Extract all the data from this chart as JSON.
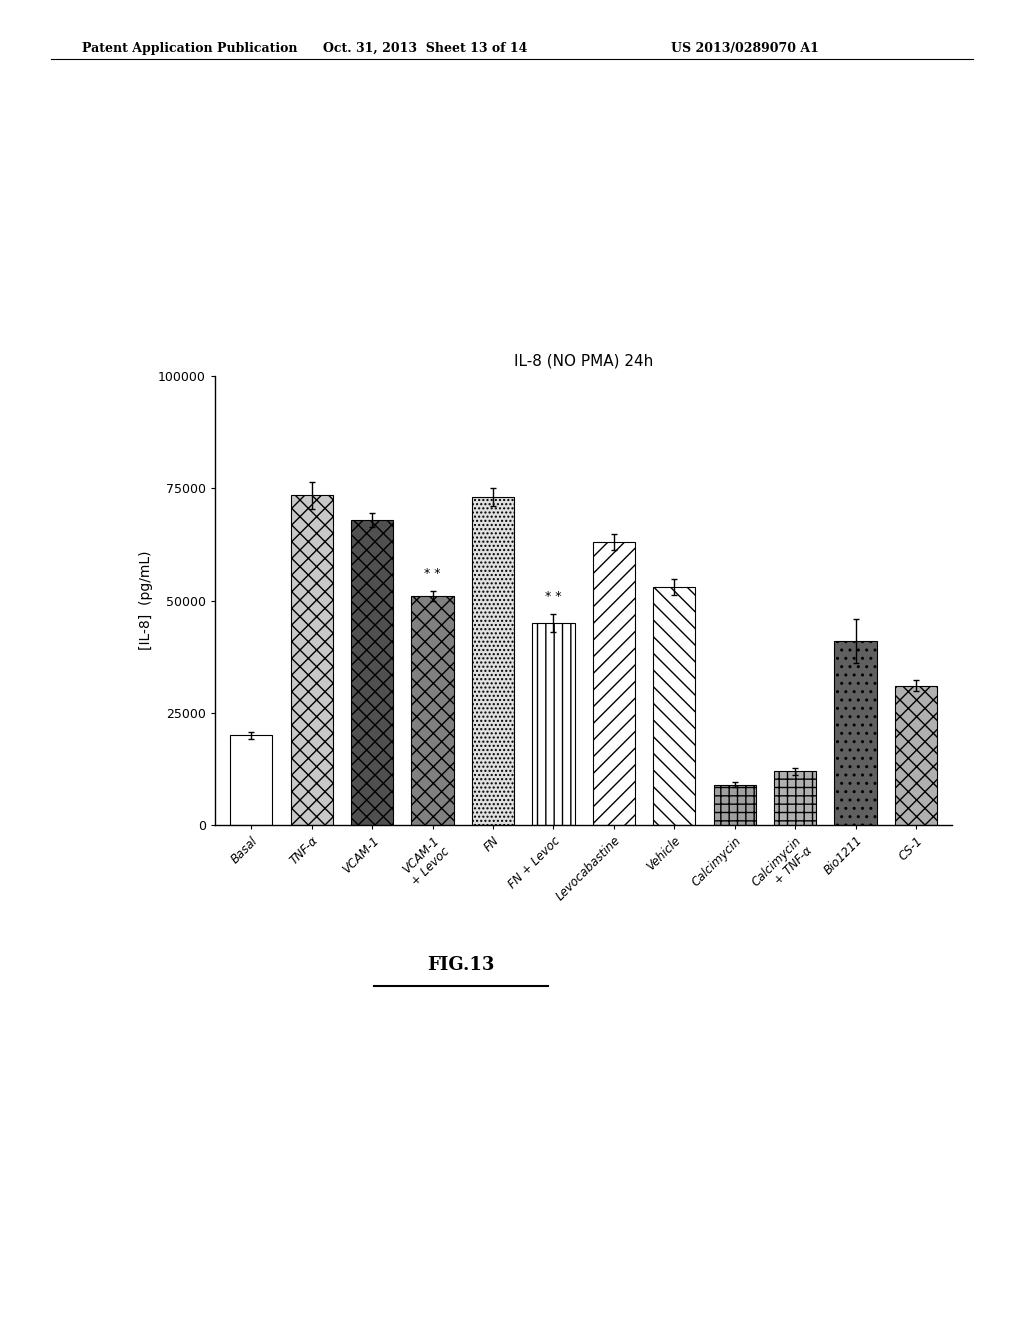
{
  "title": "IL-8 (NO PMA) 24h",
  "ylabel": "[IL-8]  (pg/mL)",
  "ylim": [
    0,
    100000
  ],
  "yticks": [
    0,
    25000,
    50000,
    75000,
    100000
  ],
  "ytick_labels": [
    "0",
    "25000",
    "50000",
    "75000",
    "100000"
  ],
  "categories": [
    "Basal",
    "TNF-α",
    "VCAM-1",
    "VCAM-1\n+ Levoc",
    "FN",
    "FN + Levoc",
    "Levocabastine",
    "Vehicle",
    "Calcimycin",
    "Calcimycin\n+ TNF-α",
    "Bio1211",
    "CS-1"
  ],
  "values": [
    20000,
    73500,
    68000,
    51000,
    73000,
    45000,
    63000,
    53000,
    9000,
    12000,
    41000,
    31000
  ],
  "errors": [
    800,
    3000,
    1500,
    1200,
    2000,
    2000,
    1800,
    1800,
    500,
    800,
    5000,
    1200
  ],
  "significance": [
    false,
    false,
    false,
    true,
    false,
    true,
    false,
    false,
    false,
    false,
    false,
    false
  ],
  "fig_label": "FIG.13",
  "header_left": "Patent Application Publication",
  "header_center": "Oct. 31, 2013  Sheet 13 of 14",
  "header_right": "US 2013/0289070 A1",
  "background_color": "#ffffff",
  "bar_edge_color": "#000000",
  "bar_width": 0.7,
  "hatch_list": [
    "",
    "xx",
    "xx",
    "xx",
    "....",
    "||",
    "//",
    "\\\\\\\\",
    "+++",
    "+++",
    "xx",
    "xx"
  ],
  "fc_list": [
    "white",
    "#d0d0d0",
    "#555555",
    "#888888",
    "#e8e8e8",
    "white",
    "white",
    "white",
    "#999999",
    "#aaaaaa",
    "#666666",
    "#bbbbbb"
  ]
}
